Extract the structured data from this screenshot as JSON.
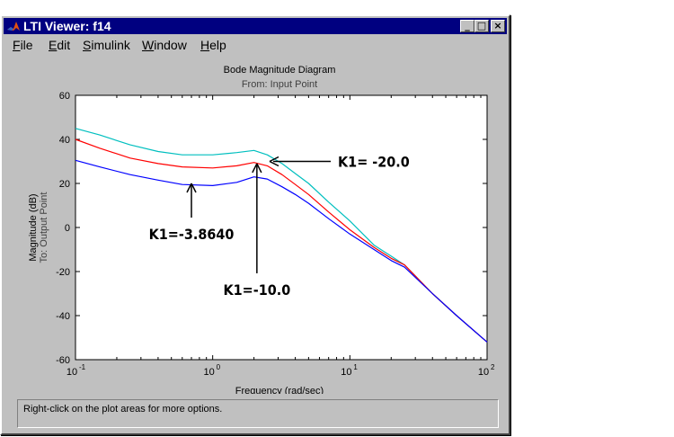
{
  "window": {
    "title": "LTI Viewer: f14",
    "buttons": {
      "minimize": "_",
      "maximize": "□",
      "close": "×"
    }
  },
  "menu": [
    {
      "name": "menu-file",
      "pre": "",
      "acc": "F",
      "post": "ile"
    },
    {
      "name": "menu-edit",
      "pre": "",
      "acc": "E",
      "post": "dit"
    },
    {
      "name": "menu-simulink",
      "pre": "",
      "acc": "S",
      "post": "imulink"
    },
    {
      "name": "menu-window",
      "pre": "",
      "acc": "W",
      "post": "indow"
    },
    {
      "name": "menu-help",
      "pre": "",
      "acc": "H",
      "post": "elp"
    }
  ],
  "chart_data": {
    "type": "line",
    "title": "Bode Magnitude Diagram",
    "subtitle": "From: Input Point",
    "xlabel": "Frequency (rad/sec)",
    "ylabel": "Magnitude (dB)",
    "ylabel2": "To: Output Point",
    "xscale": "log",
    "xlim": [
      0.1,
      100
    ],
    "ylim": [
      -60,
      60
    ],
    "yticks": [
      -60,
      -40,
      -20,
      0,
      20,
      40,
      60
    ],
    "xticks": [
      {
        "base": "10",
        "exp": "-1",
        "value": 0.1
      },
      {
        "base": "10",
        "exp": "0",
        "value": 1
      },
      {
        "base": "10",
        "exp": "1",
        "value": 10
      },
      {
        "base": "10",
        "exp": "2",
        "value": 100
      }
    ],
    "grid": false,
    "series": [
      {
        "color": "#00bfbf",
        "x": [
          0.1,
          0.15,
          0.25,
          0.4,
          0.6,
          1.0,
          1.5,
          2.0,
          2.5,
          3.2,
          4.0,
          5.0,
          7.0,
          10,
          15,
          20,
          25,
          40,
          60,
          100
        ],
        "y": [
          45,
          42,
          37.5,
          34.5,
          33,
          33,
          34,
          35,
          33,
          29,
          24.5,
          20,
          11.5,
          3,
          -8,
          -13,
          -17,
          -30,
          -40,
          -52
        ]
      },
      {
        "color": "#ff0000",
        "x": [
          0.1,
          0.15,
          0.25,
          0.4,
          0.6,
          1.0,
          1.5,
          2.0,
          2.5,
          3.2,
          4.0,
          5.0,
          7.0,
          10,
          15,
          20,
          25,
          40,
          60,
          100
        ],
        "y": [
          40,
          36,
          31.5,
          29,
          27.5,
          27,
          28,
          29.5,
          28,
          24,
          19.5,
          15,
          7,
          -1,
          -9,
          -14,
          -17,
          -30,
          -40,
          -52
        ]
      },
      {
        "color": "#0000ff",
        "x": [
          0.1,
          0.15,
          0.25,
          0.4,
          0.6,
          1.0,
          1.5,
          2.0,
          2.5,
          3.2,
          4.0,
          5.0,
          7.0,
          10,
          15,
          20,
          25,
          40,
          60,
          100
        ],
        "y": [
          30.5,
          27.5,
          24,
          21.5,
          19.5,
          19,
          20.5,
          23,
          22,
          18.5,
          15,
          11,
          4,
          -3,
          -10,
          -15,
          -18,
          -30,
          -40,
          -52
        ]
      }
    ],
    "annotations": [
      {
        "label": "K1= -20.0",
        "x": 2.6,
        "y": 30,
        "direction": "left"
      },
      {
        "label": "K1=-3.8640",
        "x": 0.7,
        "y": 20,
        "direction": "up"
      },
      {
        "label": "K1=-10.0",
        "x": 2.1,
        "y": 29,
        "direction": "up"
      }
    ]
  },
  "status": "Right-click on the plot areas for more options."
}
